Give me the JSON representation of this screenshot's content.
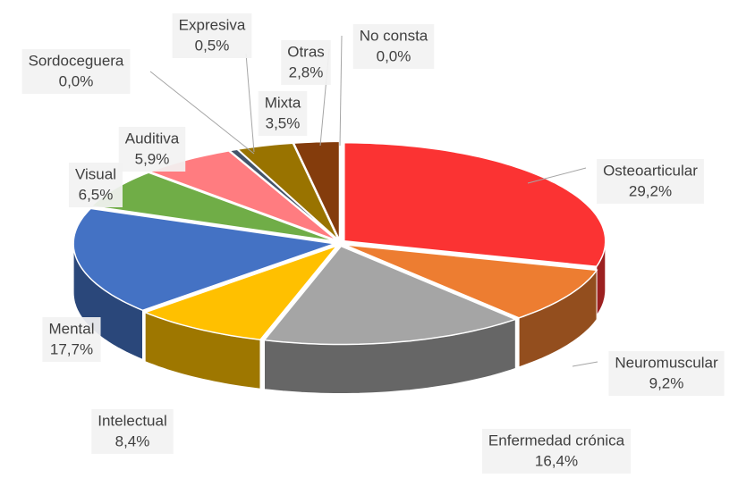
{
  "chart_data": {
    "type": "pie",
    "categories": [
      "Osteoarticular",
      "Neuromuscular",
      "Enfermedad crónica",
      "Intelectual",
      "Mental",
      "Visual",
      "Auditiva",
      "Sordoceguera",
      "Expresiva",
      "Mixta",
      "Otras",
      "No consta"
    ],
    "values": [
      29.2,
      9.2,
      16.4,
      8.4,
      17.7,
      6.5,
      5.9,
      0.0,
      0.5,
      3.5,
      2.8,
      0.0
    ],
    "value_labels": [
      "29,2%",
      "9,2%",
      "16,4%",
      "8,4%",
      "17,7%",
      "6,5%",
      "5,9%",
      "0,0%",
      "0,5%",
      "3,5%",
      "2,8%",
      "0,0%"
    ],
    "colors": [
      "#fb3333",
      "#ed7d31",
      "#a5a5a5",
      "#ffc000",
      "#4472c4",
      "#70ad47",
      "#ff7c80",
      "#264478",
      "#44546a",
      "#997300",
      "#843c0c",
      "#ed7d31"
    ]
  }
}
